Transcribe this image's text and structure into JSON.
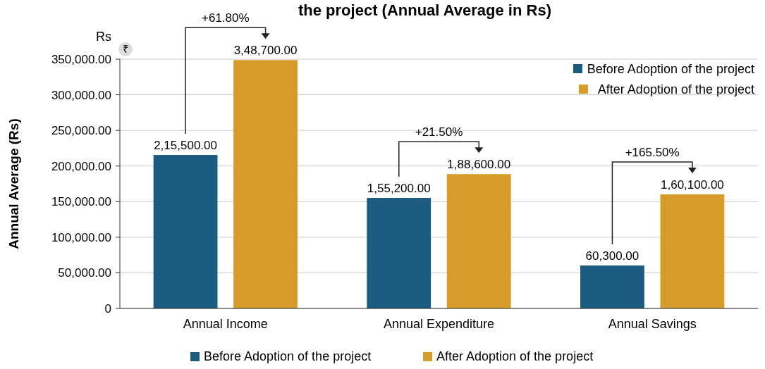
{
  "chart_data": {
    "type": "bar",
    "title": "the project (Annual Average in Rs)",
    "ylabel": "Annual Average (Rs)",
    "categories": [
      "Annual Income",
      "Annual Expenditure",
      "Annual Savings"
    ],
    "series": [
      {
        "name": "Before Adoption of the project",
        "color": "#1b5b7f",
        "values": [
          215500,
          155200,
          60300
        ],
        "value_labels": [
          "2,15,500.00",
          "1,55,200.00",
          "60,300.00"
        ]
      },
      {
        "name": "After Adoption of the project",
        "color": "#d79b2a",
        "values": [
          348700,
          188600,
          160100
        ],
        "value_labels": [
          "3,48,700.00",
          "1,88,600.00",
          "1,60,100.00"
        ]
      }
    ],
    "ylim": [
      0,
      350000
    ],
    "yticks": [
      0,
      {
        "value": 50000,
        "label": "50,000.00"
      },
      {
        "value": 100000,
        "label": "100,000.00"
      },
      {
        "value": 150000,
        "label": "150,000.00"
      },
      {
        "value": 200000,
        "label": "200,000.00"
      },
      {
        "value": 250000,
        "label": "250,000.00"
      },
      {
        "value": 300000,
        "label": "300,000.00"
      },
      {
        "value": 350000,
        "label": "350,000.00"
      }
    ],
    "grid": "y",
    "legend": [
      "top right",
      "bottom"
    ],
    "annotations": [
      "+61.80%",
      "+21.50%",
      "+165.50%",
      "Rs",
      "₹"
    ]
  }
}
